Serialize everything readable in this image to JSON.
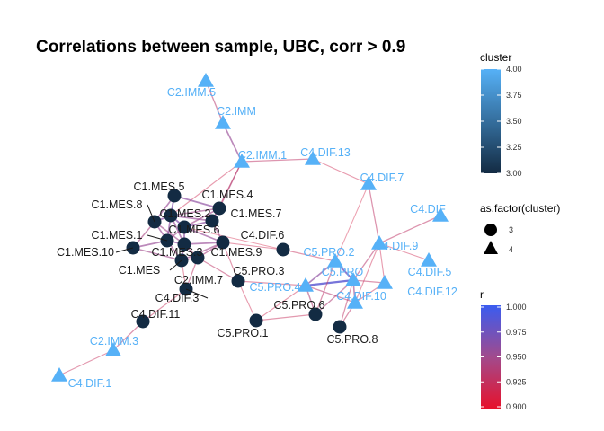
{
  "chart_data": {
    "type": "network",
    "title": "Correlations between sample, UBC, corr > 0.9",
    "colors": {
      "cluster_low": "#132B43",
      "cluster_high": "#56B1F7",
      "r_low": "#E8112A",
      "r_mid": "#A24A8C",
      "r_high": "#3A5CF0"
    },
    "legends": {
      "cluster": {
        "title": "cluster",
        "ticks": [
          "4.00",
          "3.75",
          "3.50",
          "3.25",
          "3.00"
        ],
        "range": [
          3.0,
          4.0
        ]
      },
      "shape": {
        "title": "as.factor(cluster)",
        "entries": [
          {
            "label": "3",
            "shape": "circle"
          },
          {
            "label": "4",
            "shape": "triangle"
          }
        ]
      },
      "r": {
        "title": "r",
        "ticks": [
          "1.000",
          "0.975",
          "0.950",
          "0.925",
          "0.900"
        ],
        "range": [
          0.9,
          1.0
        ]
      }
    },
    "nodes": [
      {
        "id": "C2.IMM.5",
        "cluster": 4
      },
      {
        "id": "C2.IMM",
        "cluster": 4
      },
      {
        "id": "C2.IMM.1",
        "cluster": 4
      },
      {
        "id": "C4.DIF.13",
        "cluster": 4
      },
      {
        "id": "C4.DIF.7",
        "cluster": 4
      },
      {
        "id": "C4.DIF",
        "cluster": 4
      },
      {
        "id": "C4.DIF.9",
        "cluster": 4
      },
      {
        "id": "C4.DIF.5",
        "cluster": 4
      },
      {
        "id": "C4.DIF.12",
        "cluster": 4
      },
      {
        "id": "C4.DIF.10",
        "cluster": 4
      },
      {
        "id": "C5.PRO",
        "cluster": 4
      },
      {
        "id": "C5.PRO.2",
        "cluster": 4
      },
      {
        "id": "C5.PRO.4",
        "cluster": 4
      },
      {
        "id": "C2.IMM.3",
        "cluster": 4
      },
      {
        "id": "C4.DIF.1",
        "cluster": 4
      },
      {
        "id": "C1.MES.5",
        "cluster": 3
      },
      {
        "id": "C1.MES.4",
        "cluster": 3
      },
      {
        "id": "C1.MES.8",
        "cluster": 3
      },
      {
        "id": "C1.MES.7",
        "cluster": 3
      },
      {
        "id": "C1.MES.2",
        "cluster": 3
      },
      {
        "id": "C1.MES.6",
        "cluster": 3
      },
      {
        "id": "C1.MES.1",
        "cluster": 3
      },
      {
        "id": "C1.MES.3",
        "cluster": 3
      },
      {
        "id": "C1.MES.10",
        "cluster": 3
      },
      {
        "id": "C1.MES.9",
        "cluster": 3
      },
      {
        "id": "C1.MES",
        "cluster": 3
      },
      {
        "id": "C2.IMM.7",
        "cluster": 3
      },
      {
        "id": "C4.DIF.6",
        "cluster": 3
      },
      {
        "id": "C5.PRO.3",
        "cluster": 3
      },
      {
        "id": "C4.DIF.3",
        "cluster": 3
      },
      {
        "id": "C4.DIF.11",
        "cluster": 3
      },
      {
        "id": "C5.PRO.6",
        "cluster": 3
      },
      {
        "id": "C5.PRO.1",
        "cluster": 3
      },
      {
        "id": "C5.PRO.8",
        "cluster": 3
      }
    ],
    "edges": [
      {
        "source": "C2.IMM.5",
        "target": "C2.IMM",
        "r": 0.935
      },
      {
        "source": "C2.IMM",
        "target": "C2.IMM.1",
        "r": 0.955
      },
      {
        "source": "C2.IMM.1",
        "target": "C4.DIF.13",
        "r": 0.93
      },
      {
        "source": "C2.IMM.1",
        "target": "C1.MES.4",
        "r": 0.94
      },
      {
        "source": "C2.IMM.1",
        "target": "C1.MES.7",
        "r": 0.93
      },
      {
        "source": "C2.IMM.1",
        "target": "C1.MES.2",
        "r": 0.92
      },
      {
        "source": "C4.DIF.13",
        "target": "C4.DIF.7",
        "r": 0.92
      },
      {
        "source": "C4.DIF.7",
        "target": "C4.DIF.9",
        "r": 0.93
      },
      {
        "source": "C4.DIF.7",
        "target": "C5.PRO.2",
        "r": 0.915
      },
      {
        "source": "C4.DIF",
        "target": "C4.DIF.9",
        "r": 0.93
      },
      {
        "source": "C4.DIF.9",
        "target": "C4.DIF.5",
        "r": 0.92
      },
      {
        "source": "C4.DIF.9",
        "target": "C5.PRO",
        "r": 0.935
      },
      {
        "source": "C4.DIF.9",
        "target": "C4.DIF.12",
        "r": 0.92
      },
      {
        "source": "C4.DIF.9",
        "target": "C4.DIF.10",
        "r": 0.92
      },
      {
        "source": "C4.DIF.12",
        "target": "C5.PRO",
        "r": 0.93
      },
      {
        "source": "C4.DIF.12",
        "target": "C4.DIF.10",
        "r": 0.925
      },
      {
        "source": "C4.DIF.10",
        "target": "C5.PRO",
        "r": 0.95
      },
      {
        "source": "C4.DIF.10",
        "target": "C5.PRO.4",
        "r": 0.935
      },
      {
        "source": "C4.DIF.10",
        "target": "C5.PRO.8",
        "r": 0.93
      },
      {
        "source": "C5.PRO",
        "target": "C5.PRO.2",
        "r": 0.975
      },
      {
        "source": "C5.PRO",
        "target": "C5.PRO.4",
        "r": 0.985
      },
      {
        "source": "C5.PRO",
        "target": "C5.PRO.8",
        "r": 0.93
      },
      {
        "source": "C5.PRO",
        "target": "C5.PRO.6",
        "r": 0.94
      },
      {
        "source": "C5.PRO.2",
        "target": "C5.PRO.4",
        "r": 0.96
      },
      {
        "source": "C5.PRO.2",
        "target": "C4.DIF.6",
        "r": 0.925
      },
      {
        "source": "C5.PRO.2",
        "target": "C5.PRO.6",
        "r": 0.93
      },
      {
        "source": "C5.PRO.4",
        "target": "C5.PRO.6",
        "r": 0.94
      },
      {
        "source": "C5.PRO.4",
        "target": "C5.PRO.1",
        "r": 0.92
      },
      {
        "source": "C5.PRO.4",
        "target": "C5.PRO.3",
        "r": 0.925
      },
      {
        "source": "C5.PRO.6",
        "target": "C5.PRO.1",
        "r": 0.925
      },
      {
        "source": "C5.PRO.3",
        "target": "C5.PRO.1",
        "r": 0.92
      },
      {
        "source": "C5.PRO.3",
        "target": "C2.IMM.7",
        "r": 0.93
      },
      {
        "source": "C5.PRO.3",
        "target": "C1.MES.9",
        "r": 0.925
      },
      {
        "source": "C4.DIF.6",
        "target": "C1.MES.9",
        "r": 0.92
      },
      {
        "source": "C4.DIF.6",
        "target": "C1.MES.6",
        "r": 0.915
      },
      {
        "source": "C2.IMM.7",
        "target": "C4.DIF.3",
        "r": 0.93
      },
      {
        "source": "C2.IMM.7",
        "target": "C1.MES",
        "r": 0.94
      },
      {
        "source": "C2.IMM.7",
        "target": "C1.MES.9",
        "r": 0.945
      },
      {
        "source": "C2.IMM.7",
        "target": "C1.MES.3",
        "r": 0.94
      },
      {
        "source": "C4.DIF.3",
        "target": "C1.MES",
        "r": 0.92
      },
      {
        "source": "C4.DIF.11",
        "target": "C4.DIF.3",
        "r": 0.925
      },
      {
        "source": "C4.DIF.11",
        "target": "C2.IMM.3",
        "r": 0.93
      },
      {
        "source": "C2.IMM.3",
        "target": "C4.DIF.1",
        "r": 0.925
      },
      {
        "source": "C1.MES.5",
        "target": "C1.MES.4",
        "r": 0.96
      },
      {
        "source": "C1.MES.5",
        "target": "C1.MES.8",
        "r": 0.955
      },
      {
        "source": "C1.MES.5",
        "target": "C1.MES.2",
        "r": 0.965
      },
      {
        "source": "C1.MES.4",
        "target": "C1.MES.7",
        "r": 0.955
      },
      {
        "source": "C1.MES.4",
        "target": "C1.MES.2",
        "r": 0.95
      },
      {
        "source": "C1.MES.4",
        "target": "C1.MES.6",
        "r": 0.95
      },
      {
        "source": "C1.MES.8",
        "target": "C1.MES.2",
        "r": 0.96
      },
      {
        "source": "C1.MES.8",
        "target": "C1.MES.1",
        "r": 0.955
      },
      {
        "source": "C1.MES.8",
        "target": "C1.MES.3",
        "r": 0.95
      },
      {
        "source": "C1.MES.8",
        "target": "C1.MES.10",
        "r": 0.945
      },
      {
        "source": "C1.MES.7",
        "target": "C1.MES.2",
        "r": 0.955
      },
      {
        "source": "C1.MES.7",
        "target": "C1.MES.6",
        "r": 0.96
      },
      {
        "source": "C1.MES.7",
        "target": "C1.MES.9",
        "r": 0.95
      },
      {
        "source": "C1.MES.2",
        "target": "C1.MES.6",
        "r": 0.965
      },
      {
        "source": "C1.MES.2",
        "target": "C1.MES.1",
        "r": 0.96
      },
      {
        "source": "C1.MES.2",
        "target": "C1.MES.3",
        "r": 0.955
      },
      {
        "source": "C1.MES.6",
        "target": "C1.MES.3",
        "r": 0.96
      },
      {
        "source": "C1.MES.6",
        "target": "C1.MES.9",
        "r": 0.955
      },
      {
        "source": "C1.MES.6",
        "target": "C1.MES.1",
        "r": 0.95
      },
      {
        "source": "C1.MES.1",
        "target": "C1.MES.3",
        "r": 0.96
      },
      {
        "source": "C1.MES.1",
        "target": "C1.MES.10",
        "r": 0.955
      },
      {
        "source": "C1.MES.1",
        "target": "C1.MES",
        "r": 0.95
      },
      {
        "source": "C1.MES.3",
        "target": "C1.MES.9",
        "r": 0.955
      },
      {
        "source": "C1.MES.3",
        "target": "C1.MES",
        "r": 0.955
      },
      {
        "source": "C1.MES.10",
        "target": "C1.MES",
        "r": 0.95
      },
      {
        "source": "C1.MES.9",
        "target": "C1.MES",
        "r": 0.95
      }
    ]
  }
}
